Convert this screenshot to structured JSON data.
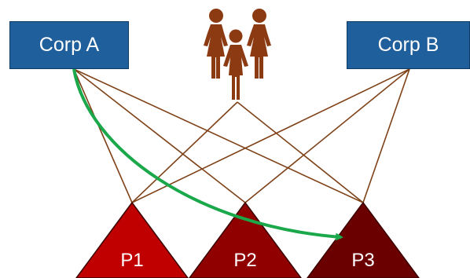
{
  "colors": {
    "box_fill": "#1f5f9b",
    "box_border": "#0f3a63",
    "line": "#7f4218",
    "arrow": "#1aa84b",
    "people": "#8b3a12",
    "tri_p1": "#c00000",
    "tri_p2": "#900000",
    "tri_p3": "#6b0000",
    "tri_outline": "#3a0000"
  },
  "nodes": {
    "corp_a": {
      "label": "Corp A"
    },
    "corp_b": {
      "label": "Corp B"
    },
    "people": {
      "icon": "family-people-icon"
    },
    "p1": {
      "label": "P1"
    },
    "p2": {
      "label": "P2"
    },
    "p3": {
      "label": "P3"
    }
  },
  "edges": [
    {
      "from": "corp_a",
      "to": "p1"
    },
    {
      "from": "corp_a",
      "to": "p2"
    },
    {
      "from": "corp_a",
      "to": "p3"
    },
    {
      "from": "people",
      "to": "p1"
    },
    {
      "from": "people",
      "to": "p3"
    },
    {
      "from": "corp_b",
      "to": "p1"
    },
    {
      "from": "corp_b",
      "to": "p2"
    },
    {
      "from": "corp_b",
      "to": "p3"
    }
  ],
  "arrow": {
    "from": "corp_a",
    "to": "p3"
  }
}
